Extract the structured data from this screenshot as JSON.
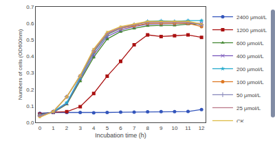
{
  "chart_data": {
    "type": "line",
    "xlabel": "Incubation time (h)",
    "ylabel": "Numbers of cells (OD600nm)",
    "xlim": [
      -0.3,
      12.3
    ],
    "ylim": [
      0,
      0.7
    ],
    "xticks": [
      0,
      1,
      2,
      3,
      4,
      5,
      6,
      7,
      8,
      9,
      10,
      11,
      12
    ],
    "yticks": [
      {
        "value": 0,
        "label": "0.0"
      },
      0.1,
      0.2,
      0.3,
      0.4,
      0.5,
      0.6,
      0.7
    ],
    "grid": false,
    "legend": "right",
    "x": [
      0,
      1,
      2,
      3,
      4,
      5,
      6,
      7,
      8,
      9,
      10,
      11,
      12
    ],
    "series": [
      {
        "name": "2400 μmol/L",
        "color": "#3355bb",
        "marker": "circle",
        "values": [
          0.055,
          0.06,
          0.06,
          0.06,
          0.058,
          0.06,
          0.062,
          0.062,
          0.064,
          0.065,
          0.065,
          0.066,
          0.078
        ],
        "error": [
          0.003,
          0.003,
          0.002,
          0.002,
          0.002,
          0.002,
          0.002,
          0.002,
          0.002,
          0.002,
          0.002,
          0.002,
          0.003
        ]
      },
      {
        "name": "1200 μmol/L",
        "color": "#aa1111",
        "marker": "square",
        "values": [
          0.05,
          0.062,
          0.065,
          0.095,
          0.175,
          0.28,
          0.37,
          0.47,
          0.53,
          0.52,
          0.525,
          0.53,
          0.515
        ],
        "error": [
          0.003,
          0.003,
          0.003,
          0.004,
          0.006,
          0.008,
          0.009,
          0.008,
          0.007,
          0.006,
          0.005,
          0.005,
          0.005
        ]
      },
      {
        "name": "600 μmol/L",
        "color": "#448833",
        "marker": "triangle-up",
        "values": [
          0.045,
          0.06,
          0.11,
          0.25,
          0.395,
          0.505,
          0.55,
          0.57,
          0.585,
          0.588,
          0.588,
          0.595,
          0.595
        ],
        "error": [
          0.003,
          0.003,
          0.004,
          0.005,
          0.006,
          0.006,
          0.005,
          0.005,
          0.004,
          0.004,
          0.004,
          0.004,
          0.004
        ]
      },
      {
        "name": "400 μmol/L",
        "color": "#7755bb",
        "marker": "x",
        "values": [
          0.045,
          0.06,
          0.115,
          0.265,
          0.41,
          0.52,
          0.56,
          0.58,
          0.595,
          0.597,
          0.597,
          0.6,
          0.6
        ],
        "error": [
          0.003,
          0.003,
          0.004,
          0.005,
          0.006,
          0.006,
          0.005,
          0.005,
          0.004,
          0.004,
          0.004,
          0.004,
          0.004
        ]
      },
      {
        "name": "200 μmol/L",
        "color": "#22aacc",
        "marker": "star",
        "values": [
          0.045,
          0.065,
          0.12,
          0.27,
          0.425,
          0.53,
          0.57,
          0.59,
          0.612,
          0.615,
          0.612,
          0.617,
          0.617
        ],
        "error": [
          0.003,
          0.003,
          0.004,
          0.005,
          0.006,
          0.005,
          0.005,
          0.004,
          0.004,
          0.004,
          0.004,
          0.004,
          0.004
        ]
      },
      {
        "name": "100 μmol/L",
        "color": "#dd7722",
        "marker": "circle",
        "values": [
          0.04,
          0.065,
          0.155,
          0.28,
          0.43,
          0.535,
          0.57,
          0.585,
          0.6,
          0.6,
          0.6,
          0.6,
          0.58
        ],
        "error": [
          0.003,
          0.003,
          0.004,
          0.005,
          0.005,
          0.005,
          0.005,
          0.004,
          0.004,
          0.004,
          0.004,
          0.004,
          0.004
        ]
      },
      {
        "name": "50 μmol/L",
        "color": "#8888bb",
        "marker": "cross",
        "values": [
          0.04,
          0.065,
          0.155,
          0.28,
          0.435,
          0.538,
          0.572,
          0.592,
          0.606,
          0.606,
          0.606,
          0.606,
          0.59
        ],
        "error": [
          0.003,
          0.003,
          0.004,
          0.005,
          0.005,
          0.005,
          0.005,
          0.004,
          0.004,
          0.004,
          0.004,
          0.004,
          0.004
        ]
      },
      {
        "name": "25 μmol/L",
        "color": "#bb7788",
        "marker": "none",
        "values": [
          0.035,
          0.065,
          0.155,
          0.285,
          0.44,
          0.542,
          0.576,
          0.594,
          0.609,
          0.608,
          0.608,
          0.609,
          0.594
        ],
        "error": [
          0.002,
          0.003,
          0.003,
          0.004,
          0.004,
          0.004,
          0.004,
          0.004,
          0.003,
          0.003,
          0.003,
          0.003,
          0.003
        ]
      },
      {
        "name": "CK",
        "color": "#ddbb44",
        "marker": "none",
        "values": [
          0.03,
          0.065,
          0.155,
          0.285,
          0.445,
          0.548,
          0.58,
          0.596,
          0.612,
          0.612,
          0.612,
          0.612,
          0.596
        ],
        "error": [
          0.002,
          0.003,
          0.003,
          0.004,
          0.004,
          0.004,
          0.004,
          0.003,
          0.003,
          0.003,
          0.003,
          0.003,
          0.003
        ]
      }
    ]
  }
}
